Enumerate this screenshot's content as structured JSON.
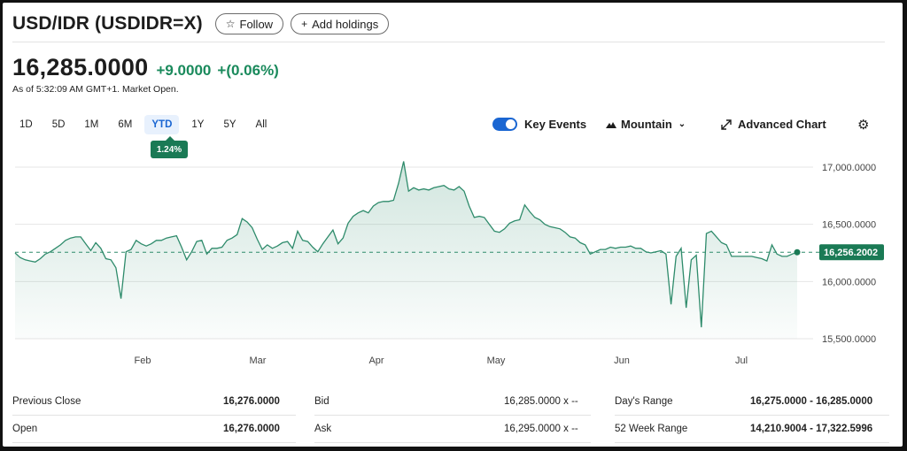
{
  "header": {
    "title": "USD/IDR (USDIDR=X)",
    "follow_label": "Follow",
    "add_holdings_label": "Add holdings"
  },
  "quote": {
    "price": "16,285.0000",
    "change": "+9.0000",
    "change_pct": "+(0.06%)",
    "as_of": "As of 5:32:09 AM GMT+1. Market Open."
  },
  "ranges": [
    "1D",
    "5D",
    "1M",
    "6M",
    "YTD",
    "1Y",
    "5Y",
    "All"
  ],
  "active_range": "YTD",
  "ytd_badge": "1.24%",
  "controls": {
    "key_events_label": "Key Events",
    "key_events_on": true,
    "mountain_label": "Mountain",
    "advanced_chart_label": "Advanced Chart"
  },
  "colors": {
    "up": "#1a8a5c",
    "line": "#2e8b6b",
    "accent": "#1a66d2",
    "badge": "#1a7a55"
  },
  "chart_data": {
    "type": "area",
    "x_ticks": [
      "Feb",
      "Mar",
      "Apr",
      "May",
      "Jun",
      "Jul"
    ],
    "y_ticks": [
      "17,000.0000",
      "16,500.0000",
      "16,000.0000",
      "15,500.0000"
    ],
    "y_tick_values": [
      17000,
      16500,
      16000,
      15500
    ],
    "ylim": [
      15500,
      17200
    ],
    "reference_value": 16256.2002,
    "reference_label": "16,256.2002",
    "values": [
      16250,
      16210,
      16190,
      16180,
      16170,
      16200,
      16240,
      16260,
      16290,
      16320,
      16360,
      16380,
      16390,
      16390,
      16330,
      16270,
      16340,
      16290,
      16200,
      16190,
      16120,
      15850,
      16260,
      16280,
      16360,
      16330,
      16310,
      16330,
      16360,
      16360,
      16380,
      16390,
      16400,
      16300,
      16190,
      16260,
      16350,
      16360,
      16240,
      16290,
      16290,
      16300,
      16360,
      16380,
      16410,
      16550,
      16520,
      16470,
      16370,
      16280,
      16320,
      16290,
      16310,
      16340,
      16350,
      16290,
      16440,
      16360,
      16350,
      16300,
      16260,
      16330,
      16390,
      16450,
      16330,
      16380,
      16510,
      16570,
      16600,
      16620,
      16600,
      16660,
      16690,
      16700,
      16700,
      16710,
      16860,
      17050,
      16790,
      16820,
      16800,
      16810,
      16800,
      16820,
      16830,
      16840,
      16810,
      16800,
      16830,
      16790,
      16660,
      16560,
      16570,
      16560,
      16500,
      16440,
      16430,
      16460,
      16510,
      16530,
      16540,
      16670,
      16610,
      16560,
      16540,
      16500,
      16480,
      16470,
      16460,
      16430,
      16390,
      16380,
      16340,
      16320,
      16240,
      16260,
      16280,
      16280,
      16300,
      16290,
      16300,
      16300,
      16310,
      16290,
      16290,
      16260,
      16250,
      16260,
      16270,
      16240,
      15800,
      16220,
      16290,
      15770,
      16190,
      16230,
      15600,
      16420,
      16440,
      16390,
      16340,
      16320,
      16220,
      16220,
      16220,
      16220,
      16220,
      16210,
      16200,
      16180,
      16320,
      16240,
      16220,
      16220,
      16240,
      16256
    ]
  },
  "stats": {
    "row1": {
      "a_label": "Previous Close",
      "a_value": "16,276.0000",
      "b_label": "Bid",
      "b_value": "16,285.0000 x --",
      "c_label": "Day's Range",
      "c_value": "16,275.0000 - 16,285.0000"
    },
    "row2": {
      "a_label": "Open",
      "a_value": "16,276.0000",
      "b_label": "Ask",
      "b_value": "16,295.0000 x --",
      "c_label": "52 Week Range",
      "c_value": "14,210.9004 - 17,322.5996"
    }
  }
}
